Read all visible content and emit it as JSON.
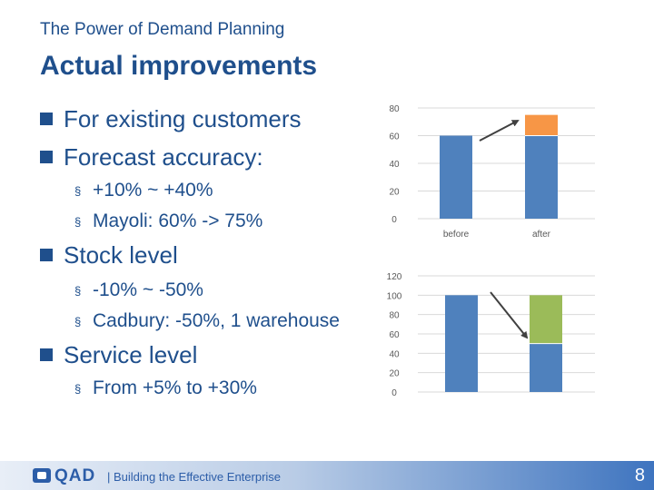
{
  "header": {
    "title": "The Power of Demand Planning"
  },
  "slide": {
    "title": "Actual improvements"
  },
  "bullets": {
    "existing": "For existing customers",
    "forecast": "Forecast accuracy:",
    "forecast_range": "+10% ~ +40%",
    "mayoli": "Mayoli: 60% -> 75%",
    "stock": "Stock level",
    "stock_range": "-10% ~ -50%",
    "cadbury": "Cadbury: -50%, 1 warehouse",
    "service": "Service level",
    "service_range": "From +5% to +30%"
  },
  "chart_data": [
    {
      "type": "bar",
      "stacked": true,
      "categories": [
        "before",
        "after"
      ],
      "series": [
        {
          "values": [
            60,
            60
          ],
          "color": "#4f81bd"
        },
        {
          "values": [
            0,
            15
          ],
          "color": "#f79646"
        }
      ],
      "ylim": [
        0,
        80
      ],
      "yticks": [
        "0",
        "20",
        "40",
        "60",
        "80"
      ],
      "grid": true,
      "legend": "none",
      "annotation": "arrow-up"
    },
    {
      "type": "bar",
      "stacked": true,
      "categories": [
        "",
        ""
      ],
      "series": [
        {
          "values": [
            100,
            50
          ],
          "color": "#4f81bd"
        },
        {
          "values": [
            0,
            50
          ],
          "color": "#9bbb59"
        }
      ],
      "ylim": [
        0,
        120
      ],
      "yticks": [
        "0",
        "20",
        "40",
        "60",
        "80",
        "100",
        "120"
      ],
      "grid": true,
      "legend": "none",
      "annotation": "arrow-down"
    }
  ],
  "footer": {
    "logo": "QAD",
    "tagline": "|  Building the Effective Enterprise",
    "page_number": "8"
  },
  "icons": {
    "bullet_level1": "square-bullet-icon",
    "bullet_level2": "small-square-bullet-icon"
  }
}
